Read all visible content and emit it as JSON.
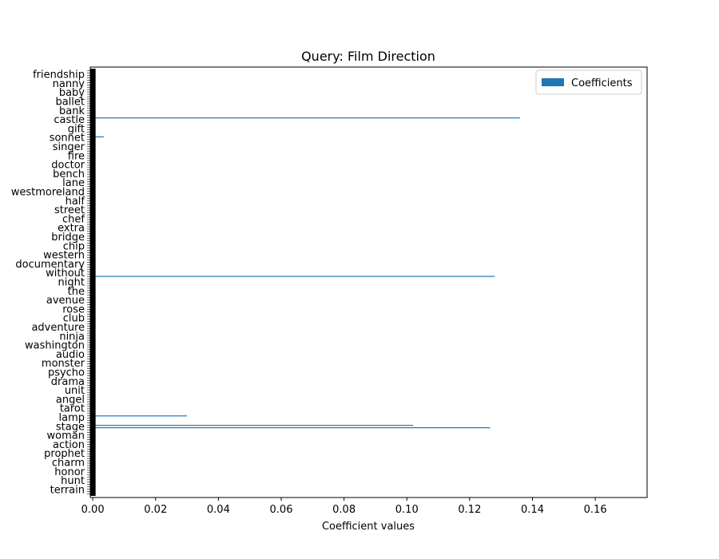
{
  "chart_data": {
    "type": "bar",
    "orientation": "horizontal",
    "title": "Query: Film Direction",
    "xlabel": "Coefficient values",
    "ylabel": "",
    "xlim": [
      -0.0008,
      0.1765
    ],
    "xticks": [
      0.0,
      0.02,
      0.04,
      0.06,
      0.08,
      0.1,
      0.12,
      0.14,
      0.16
    ],
    "xtick_labels": [
      "0.00",
      "0.02",
      "0.04",
      "0.06",
      "0.08",
      "0.10",
      "0.12",
      "0.14",
      "0.16"
    ],
    "legend": {
      "position": "top-right",
      "entries": [
        "Coefficients"
      ]
    },
    "grid": false,
    "bar_color": "#1f77b4",
    "category_count": 180,
    "y_tick_labels_visible": [
      "friendship",
      "nanny",
      "baby",
      "ballet",
      "bank",
      "castle",
      "gift",
      "sonnet",
      "singer",
      "fire",
      "doctor",
      "bench",
      "lane",
      "westmoreland",
      "half",
      "street",
      "chef",
      "extra",
      "bridge",
      "chip",
      "western",
      "documentary",
      "without",
      "night",
      "the",
      "avenue",
      "rose",
      "club",
      "adventure",
      "ninja",
      "washington",
      "audio",
      "monster",
      "psycho",
      "drama",
      "unit",
      "angel",
      "tarot",
      "lamp",
      "stage",
      "woman",
      "action",
      "prophet",
      "charm",
      "honor",
      "hunt",
      "terrain"
    ],
    "bars": [
      {
        "index": 20,
        "value": 0.136
      },
      {
        "index": 28,
        "value": 0.0035
      },
      {
        "index": 87,
        "value": 0.128
      },
      {
        "index": 146,
        "value": 0.03
      },
      {
        "index": 150,
        "value": 0.102
      },
      {
        "index": 151,
        "value": 0.1265
      }
    ],
    "baseline_value": 0.0
  }
}
